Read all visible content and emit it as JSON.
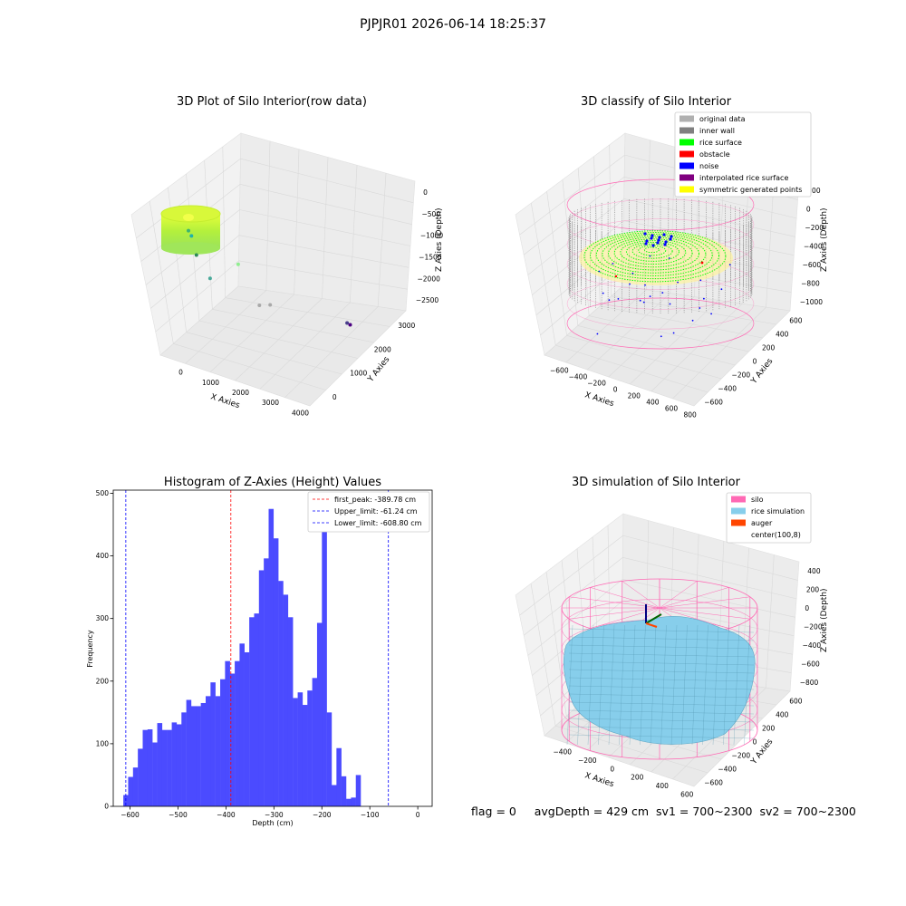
{
  "figure": {
    "suptitle": "PJPJR01 2026-06-14 18:25:37",
    "status": {
      "flag": "flag = 0",
      "avg_depth": "avgDepth = 429 cm",
      "sv1": "sv1 = 700~2300",
      "sv2": "sv2 = 700~2300"
    }
  },
  "colors": {
    "histogram_bar": "#4b4bff",
    "first_peak_line": "#ff0000",
    "limit_line": "#0000ff",
    "silo_wire": "#ff69b4",
    "rice_surface": "#87ceeb",
    "auger": "#ff4500",
    "inner_wall": "#808080",
    "original": "#b0b0b0",
    "rice_points": "#00ff00",
    "obstacle": "#ff0000",
    "noise": "#0000ff",
    "interpolated": "#800080",
    "symmetric": "#ffff00",
    "pane": "#f2f2f2",
    "grid": "#d9d9d9"
  },
  "chart_data": [
    {
      "type": "scatter",
      "subtype": "3d",
      "title": "3D Plot of Silo Interior(row data)",
      "xlabel": "X Axies",
      "ylabel": "Y Axies",
      "zlabel": "Z Axies (Depth)",
      "x_ticks": [
        "0",
        "1000",
        "2000",
        "3000",
        "4000"
      ],
      "y_ticks": [
        "0",
        "1000",
        "2000",
        "3000"
      ],
      "z_ticks": [
        "0",
        "−500",
        "−1000",
        "−1500",
        "−2000",
        "−2500"
      ],
      "points": [
        {
          "x": 200,
          "y": 200,
          "z": -600,
          "color": "#3cb371"
        },
        {
          "x": 260,
          "y": 240,
          "z": -700,
          "color": "#20b2aa"
        },
        {
          "x": 300,
          "y": 400,
          "z": -1100,
          "color": "#2e8b57"
        },
        {
          "x": 1300,
          "y": 700,
          "z": -1200,
          "color": "#90ee90"
        },
        {
          "x": 500,
          "y": 700,
          "z": -1600,
          "color": "#48a999"
        },
        {
          "x": 1700,
          "y": 1000,
          "z": -2000,
          "color": "#a9a9a9"
        },
        {
          "x": 1800,
          "y": 1300,
          "z": -2100,
          "color": "#a9a9a9"
        },
        {
          "x": 3300,
          "y": 2200,
          "z": -2600,
          "color": "#483d8b"
        },
        {
          "x": 3350,
          "y": 2250,
          "z": -2650,
          "color": "#4b0082"
        }
      ],
      "cluster": {
        "label": "",
        "depth_range": [
          -700,
          0
        ],
        "colormap": "viridis"
      }
    },
    {
      "type": "scatter",
      "subtype": "3d",
      "title": "3D classify of Silo Interior",
      "xlabel": "X Axies",
      "ylabel": "Y Axies",
      "zlabel": "Z Axies (Depth)",
      "x_ticks": [
        "−600",
        "−400",
        "−200",
        "0",
        "200",
        "400",
        "600",
        "800"
      ],
      "y_ticks": [
        "−600",
        "−400",
        "−200",
        "0",
        "200",
        "400",
        "600"
      ],
      "z_ticks": [
        "200",
        "0",
        "−200",
        "−400",
        "−600",
        "−800",
        "−1000"
      ],
      "legend": [
        {
          "label": "original data",
          "color": "#b0b0b0"
        },
        {
          "label": "inner wall",
          "color": "#808080"
        },
        {
          "label": "rice surface",
          "color": "#00ff00"
        },
        {
          "label": "obstacle",
          "color": "#ff0000"
        },
        {
          "label": "noise",
          "color": "#0000ff"
        },
        {
          "label": "interpolated rice surface",
          "color": "#800080"
        },
        {
          "label": "symmetric generated points",
          "color": "#ffff00"
        }
      ],
      "legend_position": "top-right"
    },
    {
      "type": "bar",
      "subtype": "histogram",
      "title": "Histogram of Z-Axies (Height) Values",
      "xlabel": "Depth (cm)",
      "ylabel": "Frequency",
      "xlim": [
        -635,
        30
      ],
      "ylim": [
        0,
        505
      ],
      "x_ticks": [
        -600,
        -500,
        -400,
        -300,
        -200,
        -100,
        0
      ],
      "y_ticks": [
        0,
        100,
        200,
        300,
        400,
        500
      ],
      "x_tick_labels": [
        "−600",
        "−500",
        "−400",
        "−300",
        "−200",
        "−100",
        "0"
      ],
      "y_tick_labels": [
        "0",
        "100",
        "200",
        "300",
        "400",
        "500"
      ],
      "bin_start": -614,
      "bin_width": 10.1,
      "values": [
        18,
        47,
        62,
        92,
        122,
        123,
        102,
        133,
        122,
        122,
        134,
        131,
        150,
        170,
        160,
        160,
        165,
        176,
        198,
        176,
        203,
        232,
        212,
        232,
        260,
        246,
        302,
        308,
        377,
        396,
        475,
        428,
        360,
        338,
        302,
        173,
        182,
        162,
        185,
        205,
        293,
        481,
        150,
        34,
        93,
        48,
        12,
        14,
        50
      ],
      "vlines": [
        {
          "label": "first_peak: -389.78 cm",
          "x": -389.78,
          "color": "#ff0000"
        },
        {
          "label": "Upper_limit: -61.24 cm",
          "x": -61.24,
          "color": "#0000ff"
        },
        {
          "label": "Lower_limit: -608.80 cm",
          "x": -608.8,
          "color": "#0000ff"
        }
      ],
      "legend_position": "top-right"
    },
    {
      "type": "area",
      "subtype": "3d-surface",
      "title": "3D simulation of Silo Interior",
      "xlabel": "X Axies",
      "ylabel": "Y Axies",
      "zlabel": "Z Axies (Depth)",
      "x_ticks": [
        "−400",
        "−200",
        "0",
        "200",
        "400",
        "600"
      ],
      "y_ticks": [
        "−600",
        "−400",
        "−200",
        "0",
        "200",
        "400",
        "600"
      ],
      "z_ticks": [
        "400",
        "200",
        "0",
        "−200",
        "−400",
        "−600",
        "−800"
      ],
      "legend": [
        {
          "label": "silo",
          "color": "#ff69b4"
        },
        {
          "label": "rice simulation",
          "color": "#87ceeb"
        },
        {
          "label": "auger",
          "color": "#ff4500"
        },
        {
          "label": "center(100,8)",
          "color": ""
        }
      ],
      "legend_position": "top-right"
    }
  ]
}
